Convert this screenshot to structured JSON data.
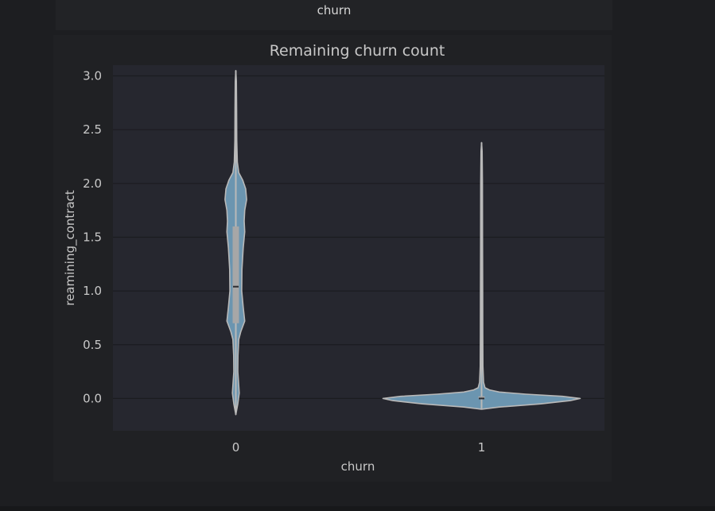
{
  "top_label": "churn",
  "chart_data": {
    "type": "violin",
    "title": "Remaining churn count",
    "xlabel": "churn",
    "ylabel": "reamining_contract",
    "categories": [
      "0",
      "1"
    ],
    "ylim": [
      -0.3,
      3.1
    ],
    "yticks": [
      "0.0",
      "0.5",
      "1.0",
      "1.5",
      "2.0",
      "2.5",
      "3.0"
    ],
    "grid": true,
    "colors": {
      "violin_fill": "#6b95b0",
      "violin_edge": "#b9b9b9",
      "plot_bg": "#26272f",
      "grid": "#1b1c20"
    },
    "violins": [
      {
        "category": "0",
        "median": 1.04,
        "q1": 0.7,
        "q3": 1.6,
        "min": -0.15,
        "max": 3.05,
        "density": [
          [
            -0.15,
            0.0
          ],
          [
            -0.05,
            0.02
          ],
          [
            0.05,
            0.035
          ],
          [
            0.12,
            0.03
          ],
          [
            0.25,
            0.02
          ],
          [
            0.4,
            0.022
          ],
          [
            0.55,
            0.03
          ],
          [
            0.62,
            0.05
          ],
          [
            0.72,
            0.09
          ],
          [
            0.85,
            0.075
          ],
          [
            1.0,
            0.06
          ],
          [
            1.2,
            0.062
          ],
          [
            1.4,
            0.075
          ],
          [
            1.55,
            0.09
          ],
          [
            1.65,
            0.085
          ],
          [
            1.75,
            0.09
          ],
          [
            1.85,
            0.11
          ],
          [
            1.95,
            0.1
          ],
          [
            2.03,
            0.07
          ],
          [
            2.1,
            0.03
          ],
          [
            2.2,
            0.015
          ],
          [
            2.4,
            0.01
          ],
          [
            2.7,
            0.008
          ],
          [
            2.95,
            0.006
          ],
          [
            3.05,
            0.0
          ]
        ]
      },
      {
        "category": "1",
        "median": 0.0,
        "q1": 0.0,
        "q3": 0.02,
        "min": -0.1,
        "max": 2.38,
        "density": [
          [
            -0.1,
            0.0
          ],
          [
            -0.08,
            0.18
          ],
          [
            -0.05,
            0.6
          ],
          [
            -0.02,
            0.9
          ],
          [
            0.0,
            1.0
          ],
          [
            0.02,
            0.82
          ],
          [
            0.04,
            0.45
          ],
          [
            0.06,
            0.18
          ],
          [
            0.08,
            0.08
          ],
          [
            0.1,
            0.035
          ],
          [
            0.15,
            0.02
          ],
          [
            0.3,
            0.014
          ],
          [
            0.6,
            0.012
          ],
          [
            1.0,
            0.011
          ],
          [
            1.5,
            0.01
          ],
          [
            2.0,
            0.009
          ],
          [
            2.3,
            0.006
          ],
          [
            2.38,
            0.0
          ]
        ]
      }
    ]
  }
}
